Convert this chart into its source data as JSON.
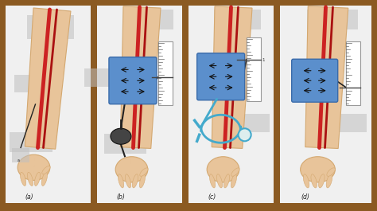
{
  "background_color": "#8B5A22",
  "panel_bg": "#F0F0F0",
  "panel_labels": [
    "(a)",
    "(b)",
    "(c)",
    "(d)"
  ],
  "skin_color": "#E8C49A",
  "skin_edge": "#D4A870",
  "artery_color1": "#CC2222",
  "artery_color2": "#AA1111",
  "cuff_color": "#5B8FCC",
  "cuff_edge": "#3A6BAA",
  "cuff_arrow": "#222222",
  "gauge_bg": "#FFFFFF",
  "gauge_edge": "#999999",
  "bulb_color": "#444444",
  "tube_color": "#222222",
  "steth_color": "#44AACC",
  "shadow_color": "#C0C0C0",
  "label_color": "#222222",
  "marker_color": "#444444"
}
